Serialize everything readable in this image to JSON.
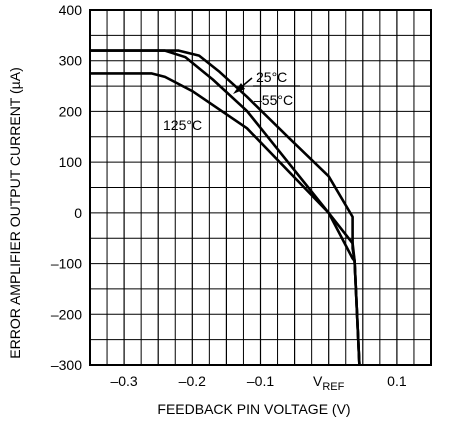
{
  "chart_data": {
    "type": "line",
    "title": "",
    "xlabel": "FEEDBACK PIN VOLTAGE (V)",
    "ylabel": "ERROR AMPLIFIER OUTPUT CURRENT (µA)",
    "xlim": [
      -0.35,
      0.15
    ],
    "ylim": [
      -300,
      400
    ],
    "grid": true,
    "x_ticks": [
      {
        "value": -0.3,
        "label": "–0.3"
      },
      {
        "value": -0.2,
        "label": "–0.2"
      },
      {
        "value": -0.1,
        "label": "–0.1"
      },
      {
        "value": 0.0,
        "label": "V",
        "sub": "REF"
      },
      {
        "value": 0.1,
        "label": "0.1"
      }
    ],
    "y_ticks": [
      {
        "value": 400,
        "label": "400"
      },
      {
        "value": 300,
        "label": "300"
      },
      {
        "value": 200,
        "label": "200"
      },
      {
        "value": 100,
        "label": "100"
      },
      {
        "value": 0,
        "label": "0"
      },
      {
        "value": -100,
        "label": "–100"
      },
      {
        "value": -200,
        "label": "–200"
      },
      {
        "value": -300,
        "label": "–300"
      }
    ],
    "series": [
      {
        "name": "25°C",
        "points": [
          [
            -0.35,
            320
          ],
          [
            -0.22,
            320
          ],
          [
            -0.19,
            310
          ],
          [
            -0.16,
            278
          ],
          [
            -0.12,
            229
          ],
          [
            -0.06,
            150
          ],
          [
            0,
            72
          ],
          [
            0.035,
            -8
          ],
          [
            0.0,
            0
          ],
          [
            0.035,
            -70
          ],
          [
            0.038,
            -95
          ],
          [
            0.045,
            -300
          ]
        ]
      },
      {
        "name": "–55°C",
        "points": [
          [
            -0.35,
            320
          ],
          [
            -0.24,
            320
          ],
          [
            -0.21,
            307
          ],
          [
            -0.17,
            263
          ],
          [
            -0.12,
            201
          ],
          [
            0.0,
            0
          ],
          [
            0.035,
            -60
          ],
          [
            0.038,
            -95
          ],
          [
            0.045,
            -300
          ]
        ]
      },
      {
        "name": "125°C",
        "points": [
          [
            -0.35,
            275
          ],
          [
            -0.26,
            275
          ],
          [
            -0.24,
            268
          ],
          [
            -0.2,
            240
          ],
          [
            -0.12,
            167
          ],
          [
            0.0,
            0
          ],
          [
            0.035,
            -90
          ],
          [
            0.038,
            -95
          ],
          [
            0.045,
            -300
          ]
        ]
      }
    ],
    "annotations": [
      {
        "text": "25°C"
      },
      {
        "text": "–55°C"
      },
      {
        "text": "125°C"
      }
    ]
  }
}
